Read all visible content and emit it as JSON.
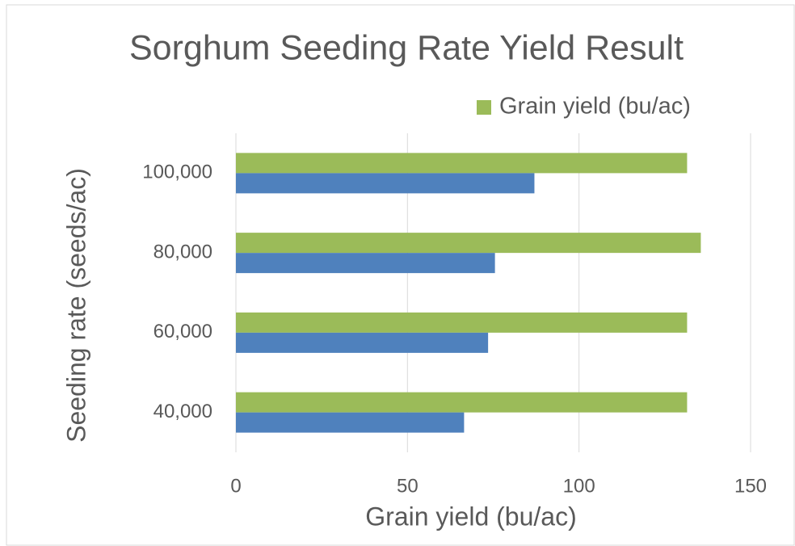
{
  "chart_data": {
    "type": "hbar",
    "title": "Sorghum Seeding Rate Yield Result",
    "x_label": "Grain yield  (bu/ac)",
    "y_label": "Seeding rate (seeds/ac)",
    "categories": [
      "40,000",
      "60,000",
      "80,000",
      "100,000"
    ],
    "series": [
      {
        "name": "Grain yield (bu/ac)",
        "color": "#9bbb59",
        "values": [
          131.5,
          131.5,
          135.5,
          131.5
        ]
      },
      {
        "color": "#4f81bd",
        "values": [
          66.5,
          73.5,
          75.5,
          87
        ]
      }
    ],
    "xlim": [
      0,
      150
    ],
    "xticks": [
      0,
      50,
      100,
      150
    ],
    "grid": true,
    "legend": "top-right"
  }
}
